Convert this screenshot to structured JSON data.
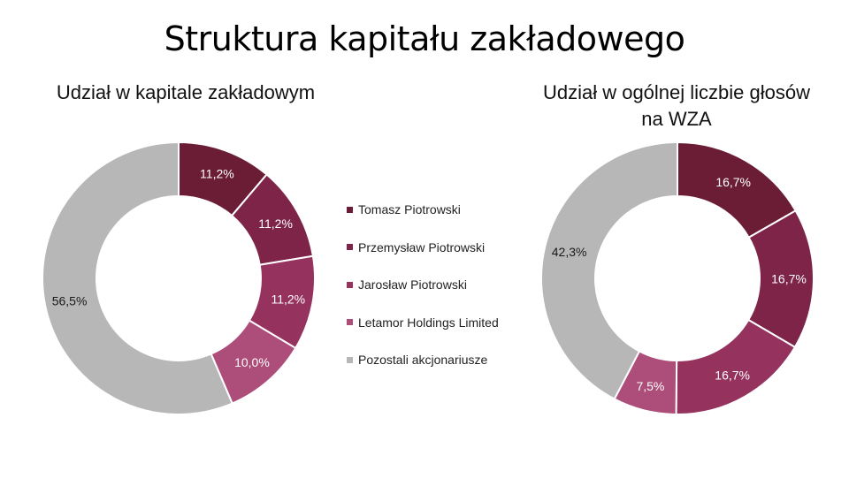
{
  "title": "Struktura kapitału zakładowego",
  "legend": {
    "items": [
      {
        "label": "Tomasz Piotrowski",
        "color": "#6b1d36"
      },
      {
        "label": "Przemysław Piotrowski",
        "color": "#7d2448"
      },
      {
        "label": "Jarosław Piotrowski",
        "color": "#95325e"
      },
      {
        "label": "Letamor Holdings Limited",
        "color": "#ad4d7a"
      },
      {
        "label": "Pozostali akcjonariusze",
        "color": "#b7b7b7"
      }
    ]
  },
  "chart_data": [
    {
      "type": "pie",
      "title": "Udział w kapitale zakładowym",
      "categories": [
        "Tomasz Piotrowski",
        "Przemysław Piotrowski",
        "Jarosław Piotrowski",
        "Letamor Holdings Limited",
        "Pozostali akcjonariusze"
      ],
      "values": [
        11.2,
        11.2,
        11.2,
        10.0,
        56.5
      ],
      "labels": [
        "11,2%",
        "11,2%",
        "11,2%",
        "10,0%",
        "56,5%"
      ],
      "colors": [
        "#6b1d36",
        "#7d2448",
        "#95325e",
        "#ad4d7a",
        "#b7b7b7"
      ],
      "label_colors": [
        "#ffffff",
        "#ffffff",
        "#ffffff",
        "#ffffff",
        "#1a1a1a"
      ],
      "donut": true,
      "legend": "center"
    },
    {
      "type": "pie",
      "title": "Udział w ogólnej liczbie głosów na WZA",
      "categories": [
        "Tomasz Piotrowski",
        "Przemysław Piotrowski",
        "Jarosław Piotrowski",
        "Letamor Holdings Limited",
        "Pozostali akcjonariusze"
      ],
      "values": [
        16.7,
        16.7,
        16.7,
        7.5,
        42.3
      ],
      "labels": [
        "16,7%",
        "16,7%",
        "16,7%",
        "7,5%",
        "42,3%"
      ],
      "colors": [
        "#6b1d36",
        "#7d2448",
        "#95325e",
        "#ad4d7a",
        "#b7b7b7"
      ],
      "label_colors": [
        "#ffffff",
        "#ffffff",
        "#ffffff",
        "#ffffff",
        "#1a1a1a"
      ],
      "donut": true,
      "legend": "center"
    }
  ]
}
